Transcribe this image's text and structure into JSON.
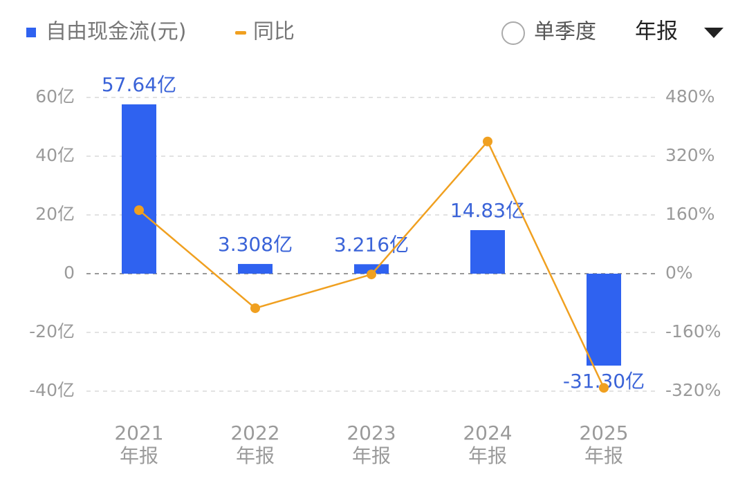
{
  "chart_data": {
    "type": "bar_line",
    "categories": [
      "2021",
      "2022",
      "2023",
      "2024",
      "2025"
    ],
    "category_suffix": "年报",
    "series": [
      {
        "name": "自由现金流(元)",
        "type": "bar",
        "color": "#2f62f0",
        "values": [
          57.64,
          3.308,
          3.216,
          14.83,
          -31.3
        ],
        "value_labels": [
          "57.64亿",
          "3.308亿",
          "3.216亿",
          "14.83亿",
          "-31.30亿"
        ]
      },
      {
        "name": "同比",
        "type": "line",
        "axis": "y2",
        "color": "#f0a020",
        "values": [
          173,
          -94,
          -2,
          360,
          -311
        ]
      }
    ],
    "ylim": [
      -40,
      60
    ],
    "yticks": [
      {
        "value": 60,
        "label": "60亿"
      },
      {
        "value": 40,
        "label": "40亿"
      },
      {
        "value": 20,
        "label": "20亿"
      },
      0,
      {
        "value": -20,
        "label": "-20亿"
      },
      {
        "value": -40,
        "label": "-40亿"
      }
    ],
    "y2lim": [
      -320,
      480
    ],
    "y2ticks": [
      {
        "value": 480,
        "label": "480%"
      },
      {
        "value": 320,
        "label": "320%"
      },
      {
        "value": 160,
        "label": "160%"
      },
      {
        "value": 0,
        "label": "0%"
      },
      {
        "value": -160,
        "label": "-160%"
      },
      {
        "value": -320,
        "label": "-320%"
      }
    ],
    "grid": true
  },
  "controls": {
    "quarter_option": "单季度",
    "period_select": "年报"
  }
}
